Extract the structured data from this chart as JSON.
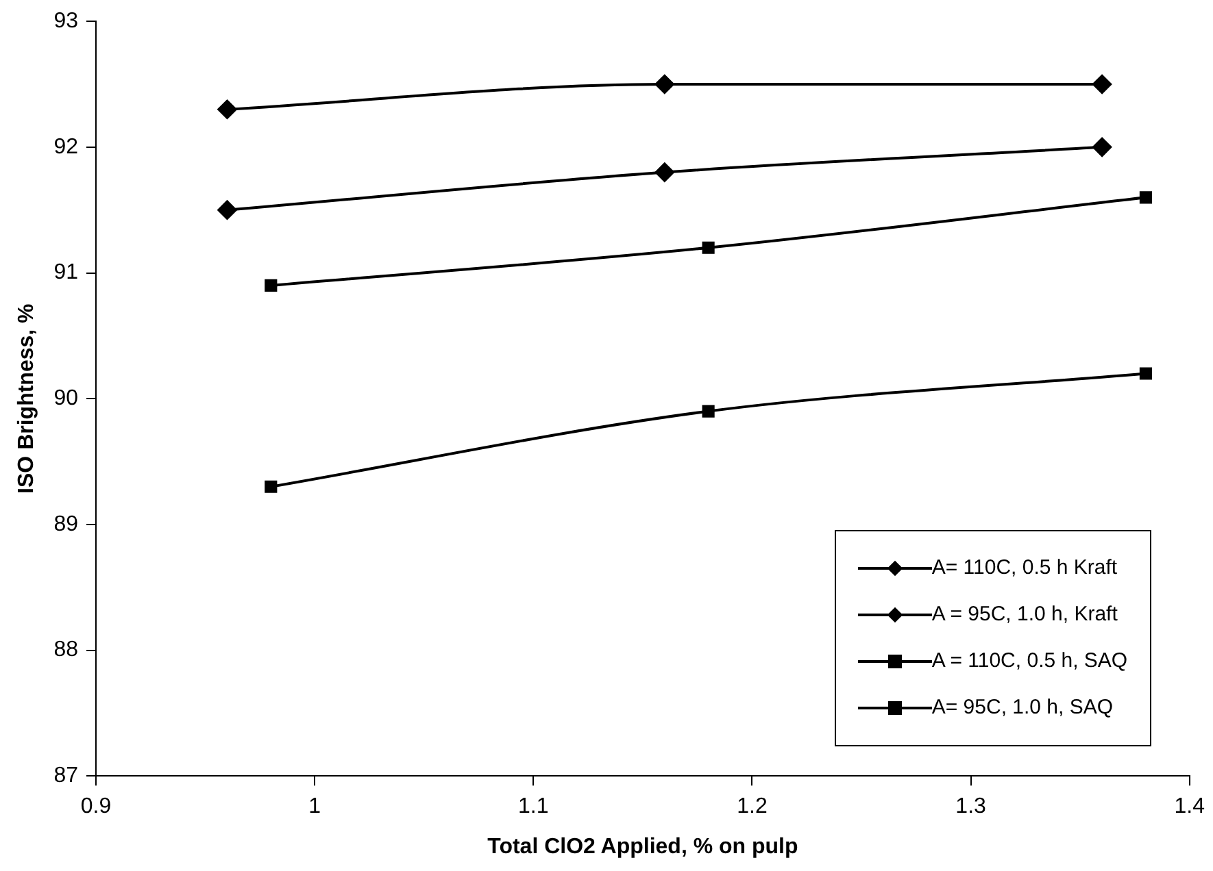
{
  "chart_data": {
    "type": "line",
    "xlabel": "Total ClO2 Applied, % on pulp",
    "ylabel": "ISO Brightness, %",
    "xlim": [
      0.9,
      1.4
    ],
    "xticks": [
      0.9,
      1,
      1.1,
      1.2,
      1.3,
      1.4
    ],
    "ylim": [
      87,
      93
    ],
    "yticks": [
      87,
      88,
      89,
      90,
      91,
      92,
      93
    ],
    "grid": false,
    "legend": "bottom right",
    "series": [
      {
        "name": "A= 110C, 0.5 h Kraft",
        "color": "#000000",
        "marker": "diamond",
        "x": [
          0.96,
          1.16,
          1.36
        ],
        "values": [
          92.3,
          92.5,
          92.5
        ]
      },
      {
        "name": "A = 95C, 1.0 h, Kraft",
        "color": "#000000",
        "marker": "diamond",
        "x": [
          0.96,
          1.16,
          1.36
        ],
        "values": [
          91.5,
          91.8,
          92.0
        ]
      },
      {
        "name": "A = 110C, 0.5 h, SAQ",
        "color": "#000000",
        "marker": "square",
        "x": [
          0.98,
          1.18,
          1.38
        ],
        "values": [
          90.9,
          91.2,
          91.6
        ]
      },
      {
        "name": "A= 95C, 1.0 h, SAQ",
        "color": "#000000",
        "marker": "square",
        "x": [
          0.98,
          1.18,
          1.38
        ],
        "values": [
          89.3,
          89.9,
          90.2
        ]
      }
    ]
  }
}
